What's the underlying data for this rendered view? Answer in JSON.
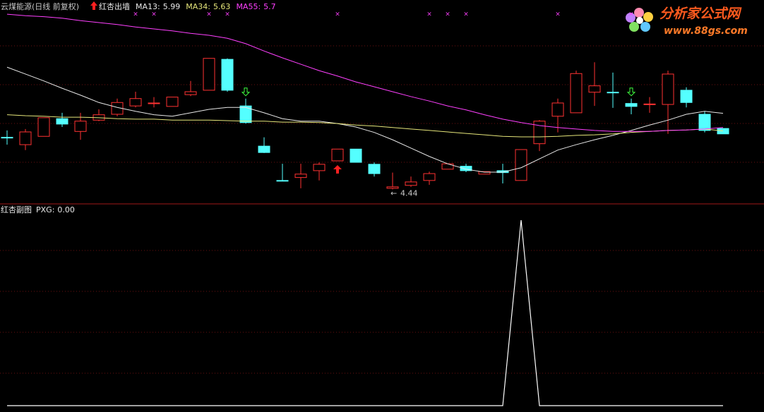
{
  "chart_data": [
    {
      "type": "candlestick",
      "title": "云煤能源(日线 前复权)",
      "indicator": "红杏出墙",
      "open": [
        5.5,
        5.35,
        5.52,
        5.88,
        5.62,
        5.85,
        5.97,
        6.14,
        6.19,
        6.13,
        6.37,
        6.46,
        7.09,
        6.14,
        5.32,
        4.62,
        4.68,
        4.82,
        5.02,
        5.26,
        4.95,
        4.46,
        4.52,
        4.62,
        4.85,
        4.91,
        4.75,
        4.82,
        4.62,
        5.37,
        5.93,
        6.0,
        6.42,
        6.42,
        6.19,
        6.17,
        6.17,
        6.46,
        5.97,
        5.68
      ],
      "high": [
        5.64,
        5.67,
        5.9,
        6.0,
        6.0,
        6.07,
        6.29,
        6.43,
        6.32,
        6.32,
        6.65,
        7.11,
        7.11,
        6.29,
        5.5,
        4.96,
        4.96,
        4.99,
        5.26,
        5.26,
        4.99,
        4.78,
        4.7,
        4.8,
        4.96,
        4.96,
        4.8,
        4.96,
        5.25,
        5.85,
        6.29,
        6.86,
        7.03,
        6.82,
        6.29,
        6.32,
        6.86,
        6.52,
        6.03,
        5.68
      ],
      "low": [
        5.35,
        5.24,
        5.52,
        5.71,
        5.45,
        5.83,
        5.93,
        6.11,
        6.11,
        6.13,
        6.34,
        6.46,
        6.43,
        5.78,
        5.18,
        4.62,
        4.46,
        4.62,
        5.02,
        4.99,
        4.7,
        4.44,
        4.49,
        4.53,
        4.85,
        4.79,
        4.75,
        4.56,
        4.62,
        5.22,
        5.6,
        6.0,
        6.14,
        6.1,
        5.97,
        6.0,
        5.57,
        6.11,
        5.6,
        5.57
      ],
      "close": [
        5.5,
        5.61,
        5.9,
        5.77,
        5.83,
        5.96,
        6.21,
        6.29,
        6.2,
        6.32,
        6.43,
        7.11,
        6.46,
        5.8,
        5.19,
        4.62,
        4.75,
        4.95,
        5.26,
        4.99,
        4.76,
        4.49,
        4.59,
        4.76,
        4.96,
        4.82,
        4.8,
        4.78,
        5.25,
        5.83,
        6.2,
        6.8,
        6.55,
        6.42,
        6.13,
        6.18,
        6.79,
        6.21,
        5.64,
        5.57
      ],
      "up_color": "#ff3232",
      "down_color": "#54ffff",
      "series": [
        {
          "name": "MA13:",
          "color": "#e8e8e8",
          "values": [
            6.93,
            6.79,
            6.65,
            6.5,
            6.36,
            6.21,
            6.11,
            6.03,
            5.96,
            5.93,
            6.0,
            6.07,
            6.11,
            6.11,
            6.0,
            5.88,
            5.83,
            5.83,
            5.78,
            5.71,
            5.6,
            5.45,
            5.28,
            5.11,
            4.96,
            4.85,
            4.79,
            4.79,
            4.88,
            5.06,
            5.24,
            5.35,
            5.45,
            5.54,
            5.64,
            5.75,
            5.85,
            5.97,
            6.03,
            5.99
          ]
        },
        {
          "name": "MA34:",
          "color": "#e6e67a",
          "values": [
            5.96,
            5.94,
            5.93,
            5.91,
            5.91,
            5.9,
            5.88,
            5.87,
            5.87,
            5.85,
            5.85,
            5.85,
            5.84,
            5.83,
            5.83,
            5.81,
            5.81,
            5.8,
            5.78,
            5.75,
            5.73,
            5.7,
            5.67,
            5.64,
            5.61,
            5.58,
            5.55,
            5.52,
            5.51,
            5.51,
            5.52,
            5.54,
            5.55,
            5.57,
            5.6,
            5.62,
            5.64,
            5.65,
            5.67,
            5.63
          ]
        },
        {
          "name": "MA55:",
          "color": "#ff40ff",
          "values": [
            8.01,
            7.98,
            7.96,
            7.93,
            7.88,
            7.84,
            7.8,
            7.75,
            7.71,
            7.67,
            7.62,
            7.58,
            7.52,
            7.41,
            7.26,
            7.12,
            6.99,
            6.86,
            6.75,
            6.63,
            6.53,
            6.43,
            6.33,
            6.24,
            6.14,
            6.06,
            5.96,
            5.87,
            5.8,
            5.74,
            5.7,
            5.67,
            5.64,
            5.62,
            5.62,
            5.62,
            5.64,
            5.65,
            5.67,
            5.7
          ]
        }
      ],
      "signal_marker": "×",
      "signals": [
        7,
        8,
        11,
        12,
        18,
        23,
        24,
        25,
        30,
        34
      ],
      "buy_signals": [
        18
      ],
      "sell_signals": [
        13,
        34
      ],
      "low_marker": "←",
      "ylim": [
        4.2,
        8.3
      ]
    },
    {
      "type": "line",
      "title": "红杏副图",
      "series": [
        {
          "name": "PXG:",
          "color": "#ffffff",
          "values": [
            0,
            0,
            0,
            0,
            0,
            0,
            0,
            0,
            0,
            0,
            0,
            0,
            0,
            0,
            0,
            0,
            0,
            0,
            0,
            0,
            0,
            0,
            0,
            0,
            0,
            0,
            0,
            0,
            1,
            0,
            0,
            0,
            0,
            0,
            0,
            0,
            0,
            0,
            0,
            0
          ],
          "value_labels": [
            null,
            null,
            null,
            null,
            null,
            null,
            null,
            null,
            null,
            null,
            null,
            null,
            null,
            null,
            null,
            null,
            null,
            null,
            null,
            null,
            null,
            null,
            null,
            null,
            null,
            null,
            null,
            null,
            null,
            null,
            null,
            null,
            null,
            null,
            null,
            null,
            null,
            null,
            null,
            "0.00"
          ]
        }
      ],
      "ylim": [
        0,
        1
      ]
    }
  ],
  "watermark": {
    "title": "分析家公式网",
    "url": "www.88gs.com"
  }
}
